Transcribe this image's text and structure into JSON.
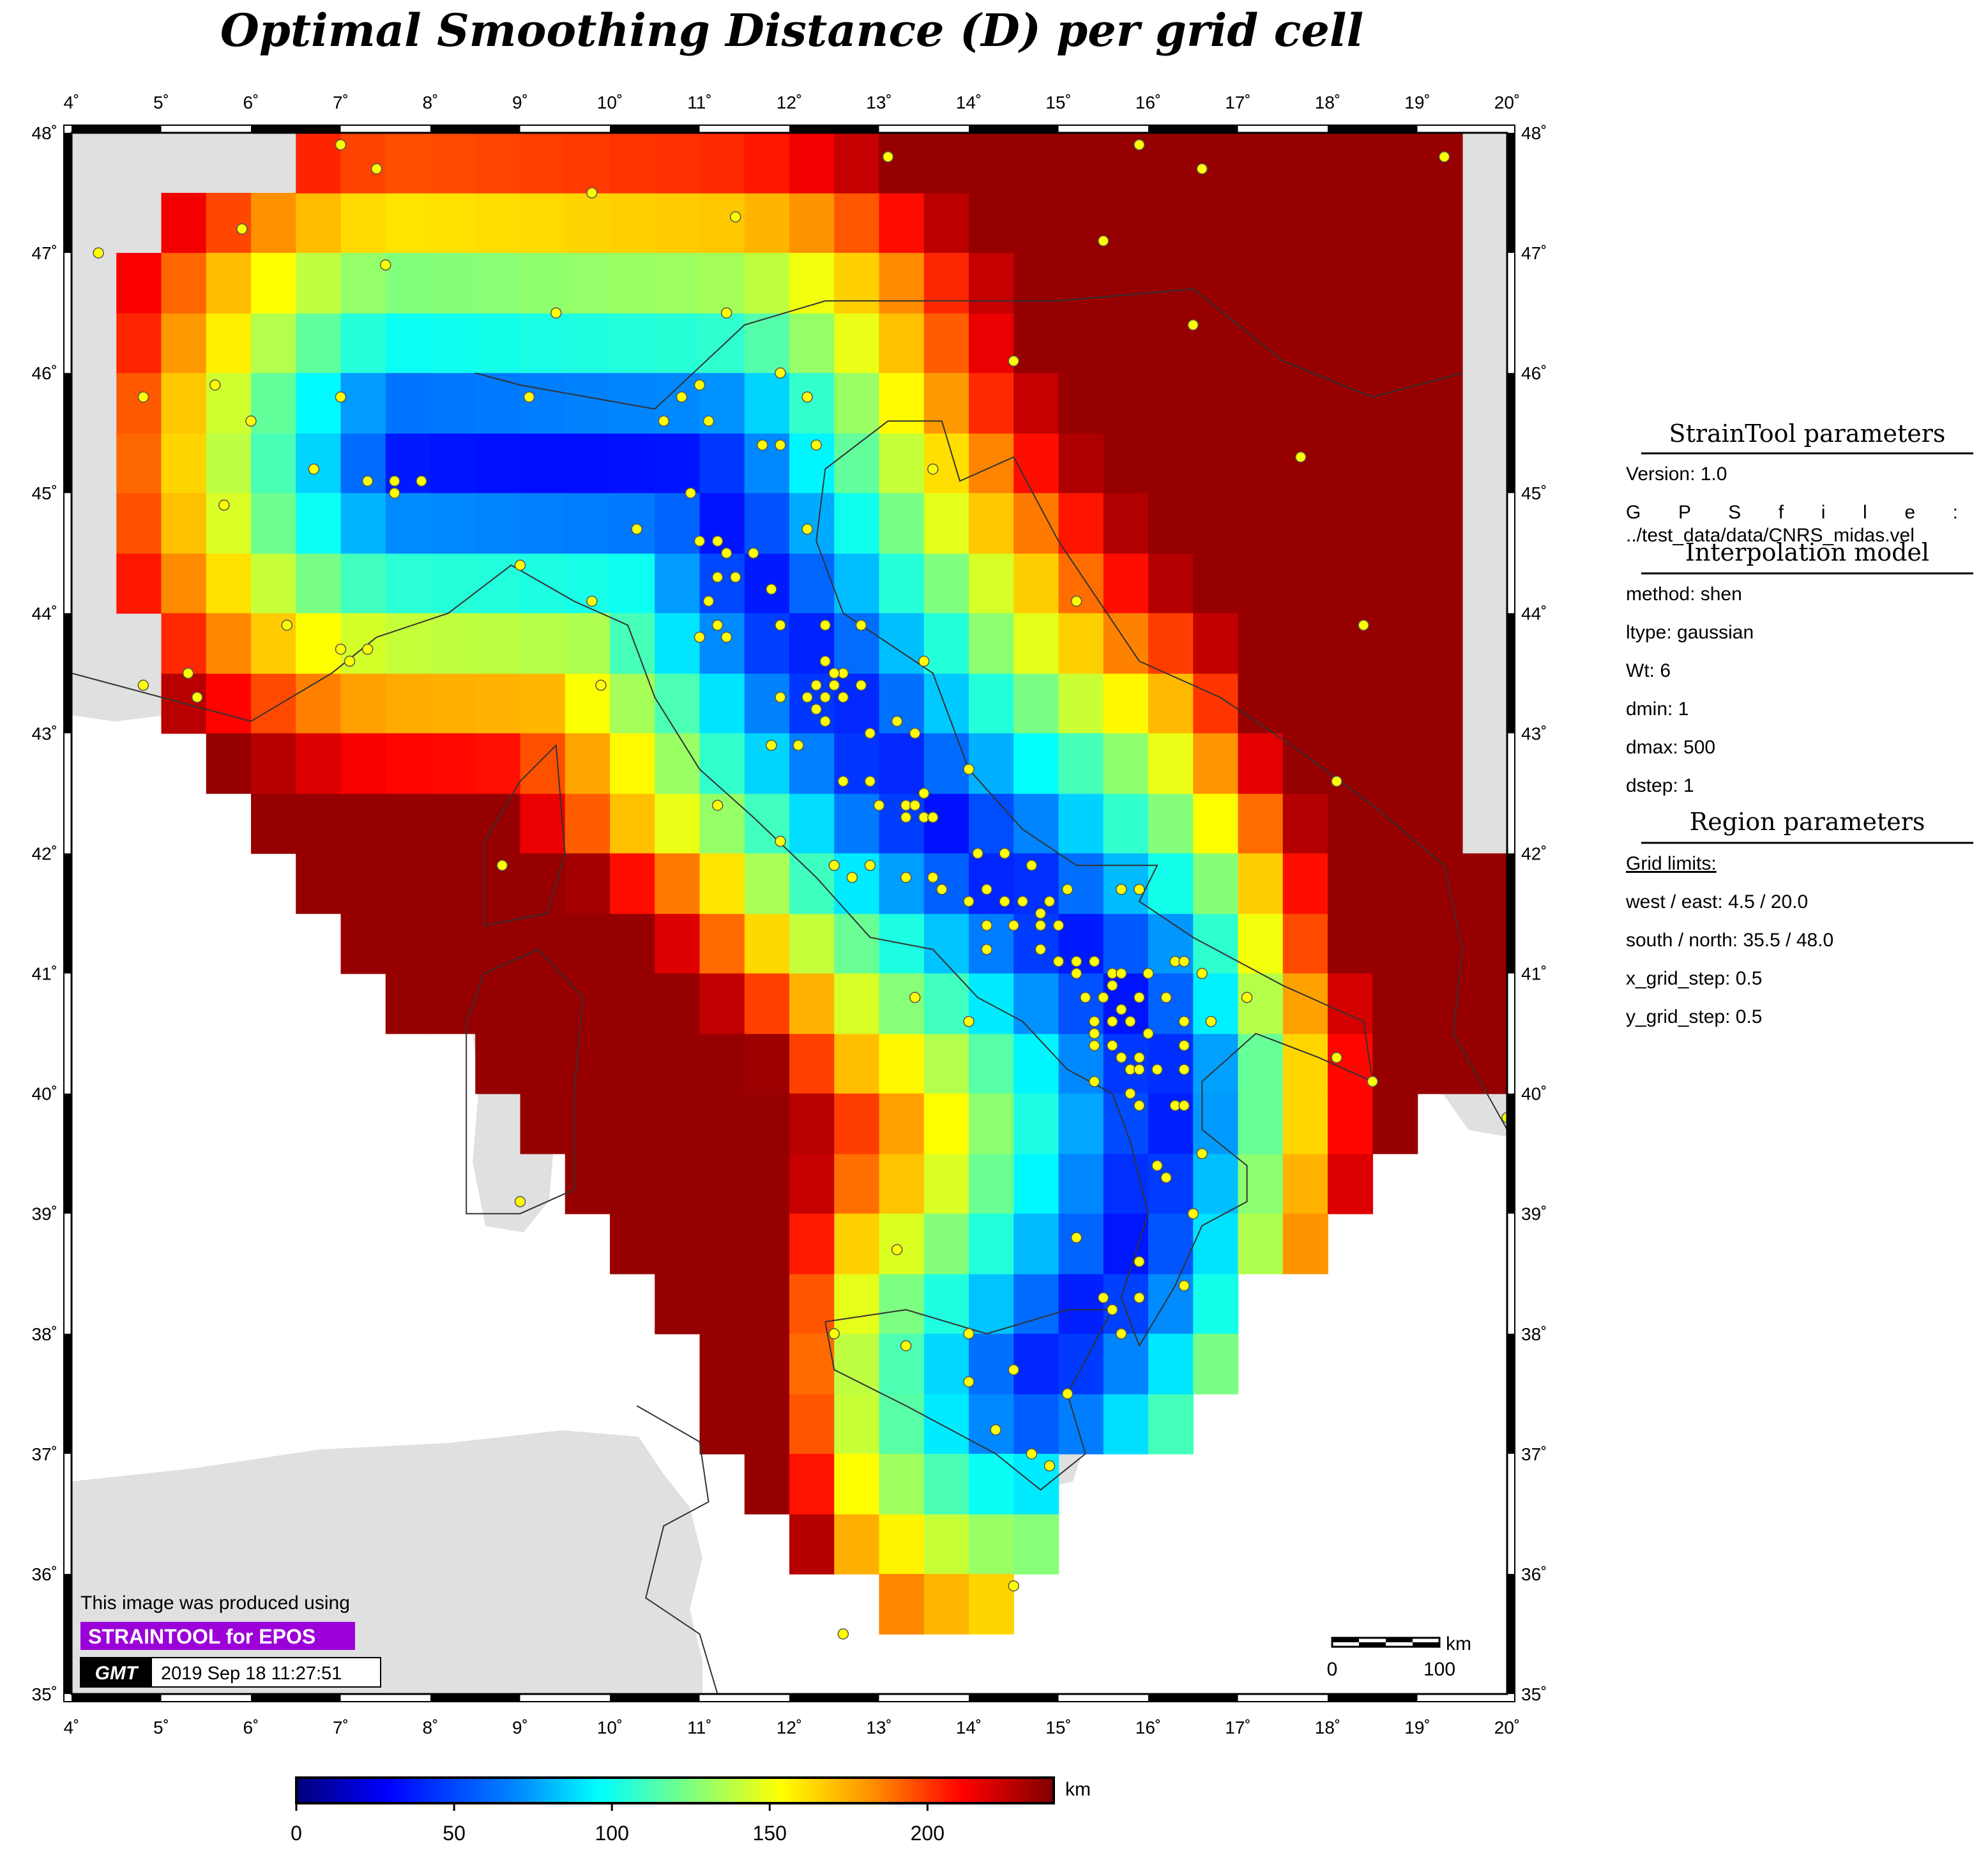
{
  "title": "Optimal Smoothing Distance (D) per grid cell",
  "map": {
    "lon_range": [
      4,
      20
    ],
    "lat_range": [
      35,
      48
    ],
    "lon_ticks": [
      "4˚",
      "5˚",
      "6˚",
      "7˚",
      "8˚",
      "9˚",
      "10˚",
      "11˚",
      "12˚",
      "13˚",
      "14˚",
      "15˚",
      "16˚",
      "17˚",
      "18˚",
      "19˚",
      "20˚"
    ],
    "lat_ticks": [
      "35˚",
      "36˚",
      "37˚",
      "38˚",
      "39˚",
      "40˚",
      "41˚",
      "42˚",
      "43˚",
      "44˚",
      "45˚",
      "46˚",
      "47˚",
      "48˚"
    ],
    "cell_size_deg": 0.5,
    "land_color": "#e0e0e0",
    "ocean_color": "#ffffff",
    "station_color": "#ffff00"
  },
  "scale_bar": {
    "unit": "km",
    "labels": [
      "0",
      "100"
    ]
  },
  "credits": {
    "line1": "This image was produced using",
    "badge": "STRAINTOOL for EPOS",
    "badge_color": "#9b00d8",
    "gmt_logo": "GMT",
    "timestamp": "2019 Sep 18 11:27:51"
  },
  "colorbar": {
    "unit": "km",
    "range": [
      0,
      240
    ],
    "tick_labels": [
      "0",
      "50",
      "100",
      "150",
      "200"
    ],
    "tick_values": [
      0,
      50,
      100,
      150,
      200
    ]
  },
  "panel": {
    "section1": {
      "heading": "StrainTool parameters",
      "version": "Version: 1.0",
      "gps_label": "G   P   S   f i l e :",
      "gps_file": "../test_data/data/CNRS_midas.vel"
    },
    "section2": {
      "heading": "Interpolation model",
      "items": [
        "method: shen",
        "ltype: gaussian",
        "Wt: 6",
        "dmin: 1",
        "dmax: 500",
        "dstep: 1"
      ]
    },
    "section3": {
      "heading": "Region parameters",
      "grid_limits": "Grid limits:",
      "items": [
        "west / east: 4.5 / 20.0",
        "south / north: 35.5 / 48.0",
        "x_grid_step: 0.5",
        "y_grid_step: 0.5"
      ]
    }
  }
}
